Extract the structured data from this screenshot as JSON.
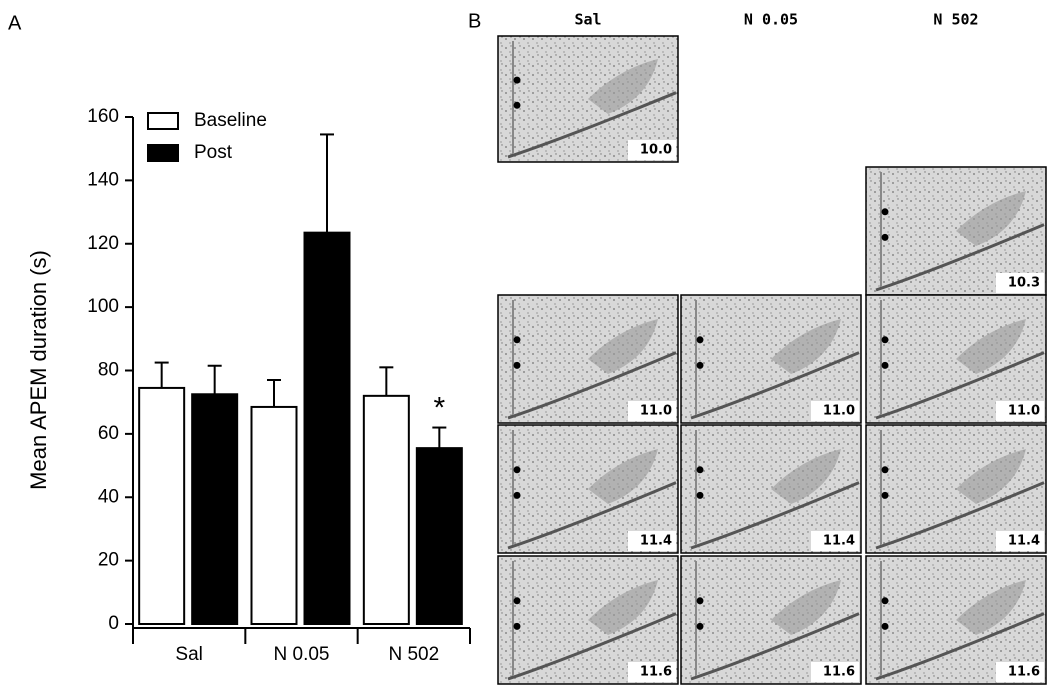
{
  "chart_data": {
    "type": "bar",
    "panel_label": "A",
    "ylabel": "Mean APEM duration (s)",
    "categories": [
      "Sal",
      "N 0.05",
      "N 502"
    ],
    "series": [
      {
        "name": "Baseline",
        "color": "#ffffff",
        "values": [
          74.5,
          68.5,
          72
        ],
        "errors": [
          8,
          8.5,
          9
        ]
      },
      {
        "name": "Post",
        "color": "#000000",
        "values": [
          72.5,
          123.5,
          55.5
        ],
        "errors": [
          9,
          31,
          6.5
        ]
      }
    ],
    "significance_marker": "*",
    "ylim": [
      0,
      160
    ],
    "yticks": [
      0,
      20,
      40,
      60,
      80,
      100,
      120,
      140,
      160
    ],
    "grid": false,
    "legend": "upper left"
  },
  "panel_b": {
    "label": "B",
    "columns": [
      "Sal",
      "N 0.05",
      "N 502"
    ],
    "sections": [
      [
        "10.0",
        null,
        null
      ],
      [
        null,
        null,
        "10.3"
      ],
      [
        "11.0",
        "11.0",
        "11.0"
      ],
      [
        "11.4",
        "11.4",
        "11.4"
      ],
      [
        "11.6",
        "11.6",
        "11.6"
      ]
    ]
  }
}
